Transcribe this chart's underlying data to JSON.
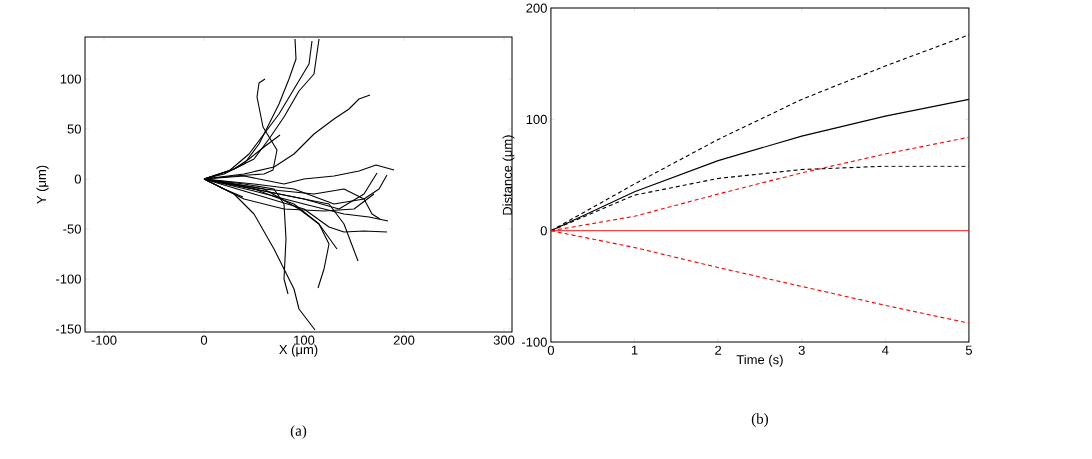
{
  "chart_data": [
    {
      "type": "line",
      "xlabel": "X (μm)",
      "ylabel": "Y (μm)",
      "annotations": [
        "(a)"
      ],
      "xlim": [
        -119,
        308
      ],
      "ylim": [
        -153,
        142
      ],
      "xticks": [
        -100,
        0,
        100,
        200,
        300
      ],
      "yticks": [
        -150,
        -100,
        -50,
        0,
        50,
        100
      ],
      "series": [
        {
          "color": "#000000",
          "x": [
            0,
            20,
            40,
            55,
            65,
            75,
            85,
            92,
            91
          ],
          "values": [
            0,
            5,
            15,
            35,
            55,
            75,
            100,
            120,
            140
          ]
        },
        {
          "color": "#000000",
          "x": [
            0,
            25,
            45,
            60,
            75,
            90,
            105,
            108
          ],
          "values": [
            0,
            8,
            25,
            45,
            65,
            90,
            115,
            138
          ]
        },
        {
          "color": "#000000",
          "x": [
            0,
            30,
            50,
            65,
            80,
            95,
            110,
            115
          ],
          "values": [
            0,
            10,
            20,
            40,
            62,
            88,
            105,
            140
          ]
        },
        {
          "color": "#000000",
          "x": [
            0,
            30,
            60,
            69,
            73,
            59,
            53,
            55,
            61
          ],
          "values": [
            0,
            3,
            5,
            9,
            29,
            52,
            82,
            96,
            100
          ]
        },
        {
          "color": "#000000",
          "x": [
            0,
            40,
            70,
            90,
            110,
            130,
            145,
            155,
            166
          ],
          "values": [
            0,
            5,
            12,
            25,
            45,
            60,
            70,
            80,
            84
          ]
        },
        {
          "color": "#000000",
          "x": [
            0,
            30,
            45,
            60,
            76
          ],
          "values": [
            0,
            10,
            20,
            32,
            44
          ]
        },
        {
          "color": "#000000",
          "x": [
            0,
            40,
            80,
            100,
            130,
            155,
            172,
            190
          ],
          "values": [
            0,
            3,
            -5,
            0,
            3,
            8,
            14,
            9
          ]
        },
        {
          "color": "#000000",
          "x": [
            0,
            50,
            100,
            135,
            160,
            173
          ],
          "values": [
            0,
            -10,
            -20,
            -30,
            -15,
            6
          ]
        },
        {
          "color": "#000000",
          "x": [
            0,
            50,
            90,
            130,
            160,
            175,
            183
          ],
          "values": [
            0,
            -5,
            -10,
            -25,
            -20,
            -10,
            4
          ]
        },
        {
          "color": "#000000",
          "x": [
            0,
            60,
            110,
            140,
            160,
            168,
            176
          ],
          "values": [
            0,
            -10,
            -15,
            -10,
            -20,
            -35,
            -40
          ]
        },
        {
          "color": "#000000",
          "x": [
            0,
            50,
            100,
            140,
            165,
            184
          ],
          "values": [
            0,
            -12,
            -25,
            -35,
            -38,
            -42
          ]
        },
        {
          "color": "#000000",
          "x": [
            0,
            50,
            100,
            125,
            140,
            160,
            183
          ],
          "values": [
            0,
            -15,
            -30,
            -48,
            -53,
            -52,
            -53
          ]
        },
        {
          "color": "#000000",
          "x": [
            0,
            60,
            100,
            125,
            140,
            154
          ],
          "values": [
            0,
            -12,
            -20,
            -25,
            -45,
            -82
          ]
        },
        {
          "color": "#000000",
          "x": [
            0,
            60,
            95,
            115,
            133
          ],
          "values": [
            0,
            -10,
            -30,
            -45,
            -70
          ]
        },
        {
          "color": "#000000",
          "x": [
            0,
            50,
            90,
            115,
            125,
            120,
            114
          ],
          "values": [
            0,
            -10,
            -25,
            -45,
            -65,
            -90,
            -109
          ]
        },
        {
          "color": "#000000",
          "x": [
            0,
            40,
            70,
            80,
            82,
            80,
            84
          ],
          "values": [
            0,
            -5,
            -10,
            -25,
            -60,
            -100,
            -115
          ]
        },
        {
          "color": "#000000",
          "x": [
            0,
            30,
            50,
            70,
            90,
            95,
            111
          ],
          "values": [
            0,
            -15,
            -35,
            -70,
            -110,
            -130,
            -151
          ]
        },
        {
          "color": "#000000",
          "x": [
            0,
            20,
            39
          ],
          "values": [
            0,
            -10,
            -18
          ]
        },
        {
          "color": "#000000",
          "x": [
            0,
            40,
            80,
            120,
            150,
            170
          ],
          "values": [
            0,
            -20,
            -30,
            -32,
            -30,
            -15
          ]
        }
      ]
    },
    {
      "type": "line",
      "xlabel": "Time (s)",
      "ylabel": "Distance (μm)",
      "annotations": [
        "(b)"
      ],
      "xlim": [
        0,
        5
      ],
      "ylim": [
        -100,
        200
      ],
      "xticks": [
        0,
        1,
        2,
        3,
        4,
        5
      ],
      "yticks": [
        -100,
        0,
        100,
        200
      ],
      "x": [
        0,
        1,
        2,
        3,
        4,
        5
      ],
      "series": [
        {
          "color": "#000000",
          "line_style": "dashed",
          "values": [
            0,
            42,
            82,
            118,
            148,
            176
          ]
        },
        {
          "color": "#000000",
          "line_style": "solid",
          "values": [
            0,
            35,
            63,
            85,
            103,
            118
          ]
        },
        {
          "color": "#000000",
          "line_style": "dashed",
          "values": [
            0,
            32,
            47,
            55,
            58,
            58
          ]
        },
        {
          "color": "#ff0000",
          "line_style": "dashed",
          "values": [
            0,
            13,
            33,
            52,
            69,
            84
          ]
        },
        {
          "color": "#ff0000",
          "line_style": "solid",
          "values": [
            0,
            0,
            0,
            0,
            0,
            0
          ]
        },
        {
          "color": "#ff0000",
          "line_style": "dashed",
          "values": [
            0,
            -15,
            -33,
            -50,
            -67,
            -83
          ]
        }
      ]
    }
  ]
}
